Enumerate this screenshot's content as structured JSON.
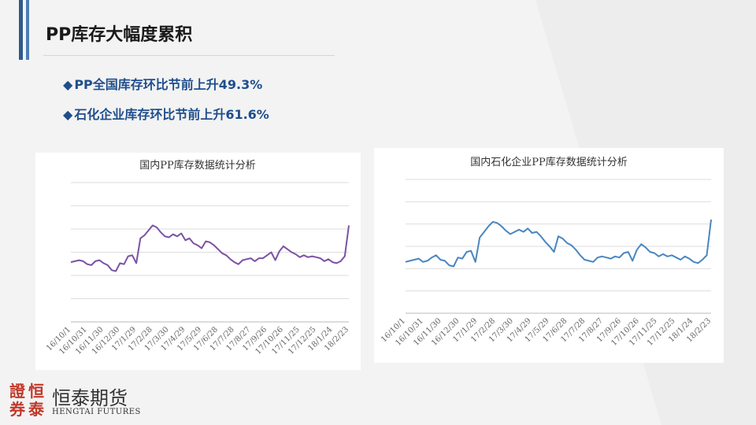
{
  "slide": {
    "title": "PP库存大幅度累积",
    "bullets": [
      {
        "marker": "◆",
        "text": "PP全国库存环比节前上升49.3%"
      },
      {
        "marker": "◆",
        "text": "石化企业库存环比节前上升61.6%"
      }
    ]
  },
  "logo": {
    "seal_chars": [
      "證",
      "恒",
      "券",
      "泰"
    ],
    "name_cn": "恒泰期货",
    "name_en": "HENGTAI FUTURES"
  },
  "colors": {
    "accent": "#2e5a8a",
    "bullet_text": "#1f4e8c",
    "series1": "#7b52a3",
    "series2": "#4a86c0",
    "logo_red": "#c0392b"
  },
  "chart_data": [
    {
      "type": "line",
      "title": "国内PP库存数据统计分析",
      "x_tick_labels": [
        "16/10/1",
        "16/10/31",
        "16/11/30",
        "16/12/30",
        "17/1/29",
        "17/2/28",
        "17/3/30",
        "17/4/29",
        "17/5/29",
        "17/6/28",
        "17/7/28",
        "17/8/27",
        "17/9/26",
        "17/10/26",
        "17/11/25",
        "17/12/25",
        "18/1/24",
        "18/2/23"
      ],
      "grid": true,
      "ylim": [
        0,
        7
      ],
      "series": [
        {
          "values": [
            3.0,
            3.05,
            3.1,
            3.05,
            2.9,
            2.85,
            3.05,
            3.1,
            2.95,
            2.85,
            2.6,
            2.55,
            2.95,
            2.9,
            3.3,
            3.35,
            2.95,
            4.2,
            4.35,
            4.6,
            4.85,
            4.75,
            4.5,
            4.3,
            4.25,
            4.4,
            4.3,
            4.45,
            4.1,
            4.2,
            3.95,
            3.85,
            3.7,
            4.05,
            4.0,
            3.85,
            3.65,
            3.45,
            3.35,
            3.15,
            3.0,
            2.9,
            3.1,
            3.15,
            3.2,
            3.05,
            3.2,
            3.2,
            3.35,
            3.5,
            3.1,
            3.55,
            3.8,
            3.65,
            3.5,
            3.4,
            3.25,
            3.35,
            3.25,
            3.3,
            3.25,
            3.2,
            3.05,
            3.15,
            3.0,
            2.95,
            3.05,
            3.3,
            4.85
          ]
        }
      ]
    },
    {
      "type": "line",
      "title": "国内石化企业PP库存数据统计分析",
      "x_tick_labels": [
        "16/10/1",
        "16/10/31",
        "16/11/30",
        "16/12/30",
        "17/1/29",
        "17/2/28",
        "17/3/30",
        "17/4/29",
        "17/5/29",
        "17/6/28",
        "17/7/28",
        "17/8/27",
        "17/9/26",
        "17/10/26",
        "17/11/25",
        "17/12/25",
        "18/1/24",
        "18/2/23"
      ],
      "grid": true,
      "ylim": [
        0,
        6
      ],
      "series": [
        {
          "values": [
            2.3,
            2.35,
            2.4,
            2.45,
            2.3,
            2.35,
            2.5,
            2.6,
            2.4,
            2.35,
            2.15,
            2.1,
            2.5,
            2.45,
            2.75,
            2.8,
            2.3,
            3.4,
            3.65,
            3.9,
            4.1,
            4.05,
            3.9,
            3.7,
            3.55,
            3.65,
            3.75,
            3.65,
            3.8,
            3.6,
            3.65,
            3.45,
            3.2,
            3.0,
            2.75,
            3.45,
            3.35,
            3.15,
            3.05,
            2.85,
            2.6,
            2.4,
            2.35,
            2.3,
            2.5,
            2.55,
            2.5,
            2.45,
            2.55,
            2.5,
            2.7,
            2.75,
            2.35,
            2.85,
            3.1,
            2.95,
            2.75,
            2.7,
            2.55,
            2.65,
            2.55,
            2.6,
            2.5,
            2.4,
            2.55,
            2.45,
            2.3,
            2.25,
            2.4,
            2.6,
            4.2
          ]
        }
      ]
    }
  ]
}
